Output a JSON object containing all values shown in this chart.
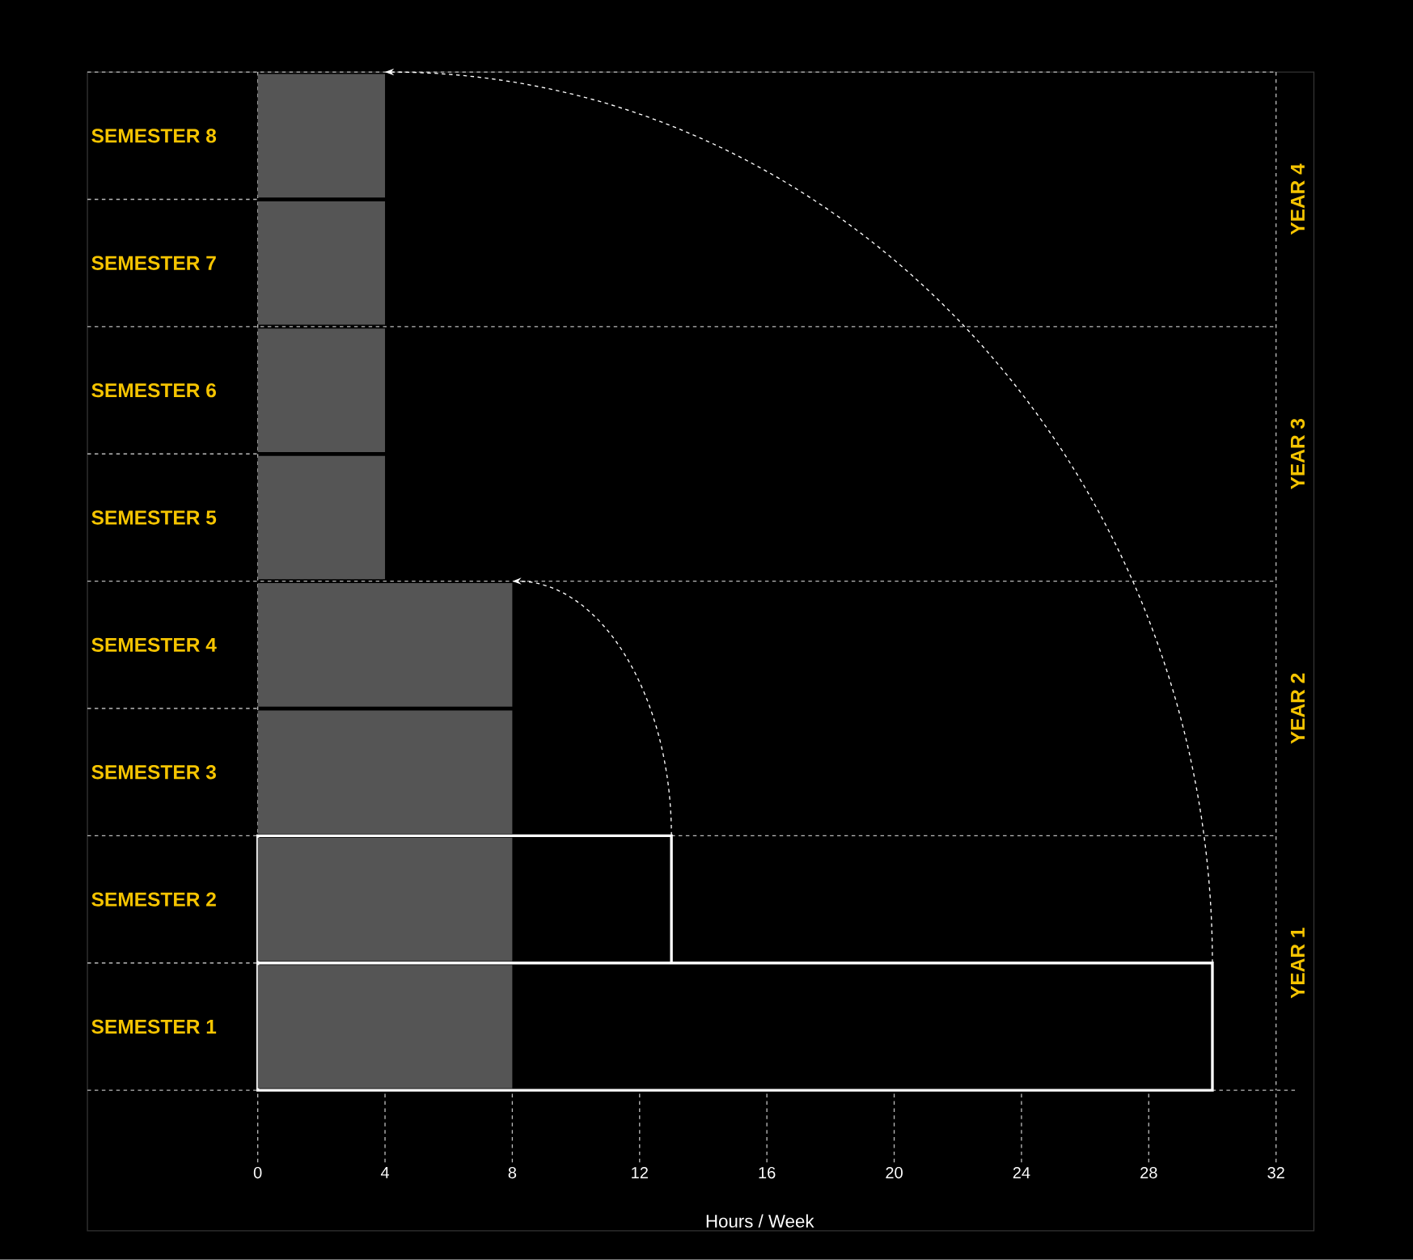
{
  "chart_data": {
    "type": "bar",
    "orientation": "horizontal",
    "xlabel": "Hours / Week",
    "categories": [
      "SEMESTER 8",
      "SEMESTER 7",
      "SEMESTER 6",
      "SEMESTER 5",
      "SEMESTER 4",
      "SEMESTER 3",
      "SEMESTER 2",
      "SEMESTER 1"
    ],
    "series": [
      {
        "color": "#555555",
        "values": [
          4,
          4,
          4,
          4,
          8,
          8,
          8,
          8
        ]
      },
      {
        "color": "#ffffff",
        "values": [
          null,
          null,
          null,
          null,
          null,
          null,
          13,
          30
        ]
      }
    ],
    "xlim": [
      0,
      32
    ],
    "xticks": [
      0,
      4,
      8,
      12,
      16,
      20,
      24,
      28,
      32
    ],
    "annotations": [
      "YEAR 4",
      "YEAR 3",
      "YEAR 2",
      "YEAR 1"
    ]
  }
}
